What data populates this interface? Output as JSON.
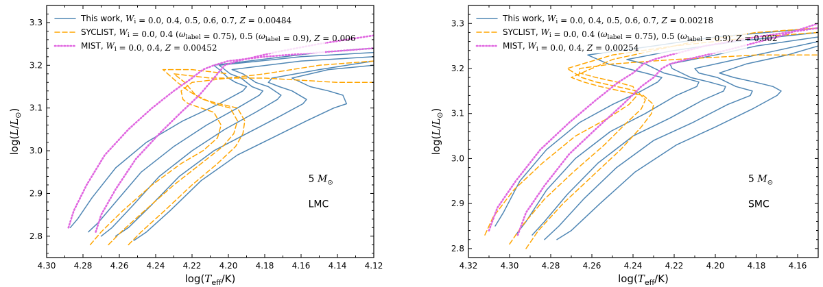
{
  "chart_data": [
    {
      "type": "line",
      "panel": "LMC",
      "xlabel": "log(T_eff/K)",
      "ylabel": "log(L/L_⊙)",
      "xlim": [
        4.3,
        4.12
      ],
      "ylim": [
        2.75,
        3.34
      ],
      "xticks": [
        4.3,
        4.28,
        4.26,
        4.24,
        4.22,
        4.2,
        4.18,
        4.16,
        4.14,
        4.12
      ],
      "xtick_labels": [
        "4.30",
        "4.28",
        "4.26",
        "4.24",
        "4.22",
        "4.20",
        "4.18",
        "4.16",
        "4.14",
        "4.12"
      ],
      "yticks": [
        2.8,
        2.9,
        3.0,
        3.1,
        3.2,
        3.3
      ],
      "ytick_labels": [
        "2.8",
        "2.9",
        "3.0",
        "3.1",
        "3.2",
        "3.3"
      ],
      "annotations": [
        "5 M_⊙",
        "LMC"
      ],
      "annotation_mass_number": "5",
      "annotation_mass_unit": "M",
      "annotation_mass_sub": "⊙",
      "annotation_galaxy": "LMC",
      "legend": [
        {
          "name": "This work",
          "prefix": "This work, ",
          "math": "W_i = 0.0, 0.4, 0.5, 0.6, 0.7, Z = 0.00484",
          "style": "solid",
          "color": "#4f86b4"
        },
        {
          "name": "SYCLIST",
          "prefix": "SYCLIST, ",
          "math": "W_i = 0.0, 0.4 (ω_label = 0.75), 0.5 (ω_label = 0.9), Z = 0.006",
          "style": "dashed",
          "color": "#ffa500"
        },
        {
          "name": "MIST",
          "prefix": "MIST, ",
          "math": "W_i = 0.0, 0.4, Z = 0.00452",
          "style": "dotted",
          "color": "#e066e0"
        }
      ],
      "series": [
        {
          "name": "This work W=0.0",
          "style": "solid",
          "x": [
            4.287,
            4.283,
            4.275,
            4.262,
            4.245,
            4.225,
            4.205,
            4.192,
            4.19,
            4.196,
            4.2,
            4.205,
            4.208,
            4.15,
            4.12
          ],
          "y": [
            2.82,
            2.84,
            2.89,
            2.96,
            3.02,
            3.07,
            3.11,
            3.14,
            3.15,
            3.16,
            3.17,
            3.19,
            3.2,
            3.23,
            3.24
          ]
        },
        {
          "name": "This work W=0.4",
          "style": "solid",
          "x": [
            4.277,
            4.272,
            4.262,
            4.248,
            4.23,
            4.212,
            4.195,
            4.183,
            4.181,
            4.187,
            4.193,
            4.199,
            4.205,
            4.16,
            4.12
          ],
          "y": [
            2.81,
            2.83,
            2.88,
            2.95,
            3.01,
            3.06,
            3.1,
            3.13,
            3.14,
            3.15,
            3.17,
            3.18,
            3.2,
            3.22,
            3.23
          ]
        },
        {
          "name": "This work W=0.5",
          "style": "solid",
          "x": [
            4.27,
            4.264,
            4.253,
            4.238,
            4.22,
            4.202,
            4.185,
            4.173,
            4.171,
            4.178,
            4.185,
            4.192,
            4.198,
            4.16,
            4.12
          ],
          "y": [
            2.8,
            2.82,
            2.87,
            2.94,
            3.0,
            3.05,
            3.09,
            3.12,
            3.13,
            3.15,
            3.16,
            3.18,
            3.19,
            3.21,
            3.22
          ]
        },
        {
          "name": "This work W=0.6",
          "style": "solid",
          "x": [
            4.262,
            4.255,
            4.243,
            4.227,
            4.208,
            4.19,
            4.172,
            4.159,
            4.157,
            4.165,
            4.172,
            4.178,
            4.176,
            4.15,
            4.12
          ],
          "y": [
            2.8,
            2.82,
            2.87,
            2.94,
            3.0,
            3.04,
            3.08,
            3.11,
            3.12,
            3.14,
            3.15,
            3.16,
            3.17,
            3.19,
            3.21
          ]
        },
        {
          "name": "This work W=0.7",
          "style": "solid",
          "x": [
            4.252,
            4.245,
            4.232,
            4.215,
            4.195,
            4.176,
            4.157,
            4.142,
            4.135,
            4.137,
            4.145,
            4.155,
            4.165,
            4.145,
            4.12
          ],
          "y": [
            2.79,
            2.81,
            2.86,
            2.93,
            2.99,
            3.03,
            3.07,
            3.1,
            3.11,
            3.13,
            3.14,
            3.15,
            3.17,
            3.19,
            3.2
          ]
        },
        {
          "name": "SYCLIST W=0.0",
          "style": "dashed",
          "x": [
            4.276,
            4.27,
            4.258,
            4.242,
            4.226,
            4.214,
            4.206,
            4.204,
            4.208,
            4.215,
            4.222,
            4.225,
            4.226,
            4.22,
            4.2,
            4.18,
            4.15,
            4.12
          ],
          "y": [
            2.78,
            2.81,
            2.86,
            2.92,
            2.97,
            3.0,
            3.03,
            3.06,
            3.09,
            3.1,
            3.11,
            3.12,
            3.14,
            3.16,
            3.17,
            3.18,
            3.2,
            3.21
          ]
        },
        {
          "name": "SYCLIST W=0.4",
          "style": "dashed",
          "x": [
            4.266,
            4.259,
            4.246,
            4.23,
            4.215,
            4.203,
            4.197,
            4.195,
            4.199,
            4.208,
            4.218,
            4.224,
            4.23,
            4.21,
            4.18,
            4.14,
            4.12
          ],
          "y": [
            2.78,
            2.81,
            2.86,
            2.92,
            2.97,
            3.01,
            3.04,
            3.07,
            3.1,
            3.11,
            3.13,
            3.16,
            3.18,
            3.17,
            3.17,
            3.16,
            3.16
          ]
        },
        {
          "name": "SYCLIST W=0.5",
          "style": "dashed",
          "x": [
            4.255,
            4.248,
            4.235,
            4.22,
            4.206,
            4.196,
            4.192,
            4.191,
            4.195,
            4.205,
            4.214,
            4.222,
            4.228,
            4.236,
            4.22,
            4.2
          ],
          "y": [
            2.78,
            2.81,
            2.86,
            2.92,
            2.97,
            3.01,
            3.04,
            3.07,
            3.1,
            3.11,
            3.12,
            3.14,
            3.16,
            3.19,
            3.19,
            3.18
          ]
        },
        {
          "name": "MIST W=0.0",
          "style": "dotted",
          "x": [
            4.288,
            4.285,
            4.278,
            4.268,
            4.255,
            4.242,
            4.23,
            4.22,
            4.214,
            4.208,
            4.2,
            4.18,
            4.15,
            4.12
          ],
          "y": [
            2.82,
            2.86,
            2.92,
            2.99,
            3.05,
            3.1,
            3.14,
            3.17,
            3.19,
            3.2,
            3.21,
            3.22,
            3.23,
            3.24
          ]
        },
        {
          "name": "MIST W=0.4",
          "style": "dotted",
          "x": [
            4.273,
            4.27,
            4.262,
            4.251,
            4.238,
            4.226,
            4.216,
            4.21,
            4.206,
            4.202,
            4.195,
            4.175,
            4.15,
            4.12
          ],
          "y": [
            2.81,
            2.85,
            2.91,
            2.98,
            3.04,
            3.09,
            3.13,
            3.16,
            3.18,
            3.2,
            3.21,
            3.23,
            3.25,
            3.27
          ]
        }
      ]
    },
    {
      "type": "line",
      "panel": "SMC",
      "xlabel": "log(T_eff/K)",
      "ylabel": "log(L/L_⊙)",
      "xlim": [
        4.32,
        4.15
      ],
      "ylim": [
        2.78,
        3.34
      ],
      "xticks": [
        4.32,
        4.3,
        4.28,
        4.26,
        4.24,
        4.22,
        4.2,
        4.18,
        4.16
      ],
      "xtick_labels": [
        "4.32",
        "4.30",
        "4.28",
        "4.26",
        "4.24",
        "4.22",
        "4.20",
        "4.18",
        "4.16"
      ],
      "yticks": [
        2.8,
        2.9,
        3.0,
        3.1,
        3.2,
        3.3
      ],
      "ytick_labels": [
        "2.8",
        "2.9",
        "3.0",
        "3.1",
        "3.2",
        "3.3"
      ],
      "annotations": [
        "5 M_⊙",
        "SMC"
      ],
      "annotation_mass_number": "5",
      "annotation_mass_unit": "M",
      "annotation_mass_sub": "⊙",
      "annotation_galaxy": "SMC",
      "legend": [
        {
          "name": "This work",
          "prefix": "This work, ",
          "math": "W_i = 0.0, 0.4, 0.5, 0.6, 0.7, Z = 0.00218",
          "style": "solid",
          "color": "#4f86b4"
        },
        {
          "name": "SYCLIST",
          "prefix": "SYCLIST, ",
          "math": "W_i = 0.0, 0.4 (ω_label = 0.75), 0.5 (ω_label = 0.9), Z = 0.002",
          "style": "dashed",
          "color": "#ffa500"
        },
        {
          "name": "MIST",
          "prefix": "MIST, ",
          "math": "W_i = 0.0, 0.4, Z = 0.00254",
          "style": "dotted",
          "color": "#e066e0"
        }
      ],
      "series": [
        {
          "name": "This work W=0.0",
          "style": "solid",
          "x": [
            4.307,
            4.303,
            4.295,
            4.282,
            4.266,
            4.25,
            4.236,
            4.228,
            4.226,
            4.234,
            4.243,
            4.252,
            4.262,
            4.23,
            4.2,
            4.15
          ],
          "y": [
            2.85,
            2.88,
            2.95,
            3.02,
            3.08,
            3.12,
            3.15,
            3.17,
            3.18,
            3.19,
            3.2,
            3.21,
            3.23,
            3.25,
            3.27,
            3.29
          ]
        },
        {
          "name": "This work W=0.4",
          "style": "solid",
          "x": [
            4.297,
            4.292,
            4.282,
            4.268,
            4.251,
            4.234,
            4.219,
            4.209,
            4.208,
            4.216,
            4.225,
            4.234,
            4.243,
            4.22,
            4.19,
            4.15
          ],
          "y": [
            2.83,
            2.86,
            2.93,
            3.0,
            3.06,
            3.1,
            3.14,
            3.16,
            3.17,
            3.18,
            3.19,
            3.21,
            3.22,
            3.24,
            3.26,
            3.28
          ]
        },
        {
          "name": "This work W=0.5",
          "style": "solid",
          "x": [
            4.289,
            4.283,
            4.272,
            4.257,
            4.24,
            4.222,
            4.206,
            4.196,
            4.195,
            4.203,
            4.212,
            4.221,
            4.222,
            4.2,
            4.18,
            4.15
          ],
          "y": [
            2.83,
            2.86,
            2.92,
            2.99,
            3.05,
            3.09,
            3.13,
            3.15,
            3.16,
            3.17,
            3.18,
            3.2,
            3.21,
            3.23,
            3.25,
            3.27
          ]
        },
        {
          "name": "This work W=0.6",
          "style": "solid",
          "x": [
            4.283,
            4.276,
            4.264,
            4.248,
            4.23,
            4.211,
            4.194,
            4.183,
            4.182,
            4.19,
            4.199,
            4.208,
            4.21,
            4.19,
            4.17,
            4.15
          ],
          "y": [
            2.82,
            2.85,
            2.91,
            2.98,
            3.04,
            3.08,
            3.12,
            3.14,
            3.15,
            3.16,
            3.18,
            3.19,
            3.2,
            3.22,
            3.24,
            3.26
          ]
        },
        {
          "name": "This work W=0.7",
          "style": "solid",
          "x": [
            4.277,
            4.27,
            4.256,
            4.239,
            4.219,
            4.2,
            4.182,
            4.17,
            4.168,
            4.172,
            4.181,
            4.191,
            4.198,
            4.185,
            4.165,
            4.15
          ],
          "y": [
            2.82,
            2.84,
            2.9,
            2.97,
            3.03,
            3.07,
            3.11,
            3.14,
            3.15,
            3.16,
            3.17,
            3.18,
            3.19,
            3.21,
            3.23,
            3.25
          ]
        },
        {
          "name": "SYCLIST W=0.0",
          "style": "dashed",
          "x": [
            4.312,
            4.308,
            4.298,
            4.284,
            4.268,
            4.252,
            4.242,
            4.238,
            4.24,
            4.248,
            4.258,
            4.266,
            4.266,
            4.25,
            4.22,
            4.18,
            4.15
          ],
          "y": [
            2.83,
            2.87,
            2.93,
            2.99,
            3.05,
            3.09,
            3.12,
            3.14,
            3.16,
            3.17,
            3.18,
            3.19,
            3.2,
            3.21,
            3.22,
            3.23,
            3.23
          ]
        },
        {
          "name": "SYCLIST W=0.4",
          "style": "dashed",
          "x": [
            4.3,
            4.294,
            4.283,
            4.269,
            4.254,
            4.243,
            4.236,
            4.234,
            4.238,
            4.248,
            4.258,
            4.265,
            4.272,
            4.25,
            4.22,
            4.18,
            4.15
          ],
          "y": [
            2.81,
            2.85,
            2.91,
            2.97,
            3.03,
            3.08,
            3.11,
            3.13,
            3.15,
            3.16,
            3.17,
            3.18,
            3.2,
            3.23,
            3.25,
            3.27,
            3.28
          ]
        },
        {
          "name": "SYCLIST W=0.5",
          "style": "dashed",
          "x": [
            4.292,
            4.286,
            4.274,
            4.26,
            4.246,
            4.236,
            4.231,
            4.23,
            4.235,
            4.246,
            4.256,
            4.264,
            4.27,
            4.25,
            4.21,
            4.18,
            4.15
          ],
          "y": [
            2.8,
            2.84,
            2.9,
            2.96,
            3.02,
            3.07,
            3.1,
            3.12,
            3.14,
            3.15,
            3.16,
            3.17,
            3.18,
            3.22,
            3.26,
            3.28,
            3.29
          ]
        },
        {
          "name": "MIST W=0.0",
          "style": "dotted",
          "x": [
            4.31,
            4.306,
            4.297,
            4.285,
            4.271,
            4.258,
            4.247,
            4.24,
            4.235,
            4.23,
            4.222,
            4.205,
            4.18,
            4.15
          ],
          "y": [
            2.84,
            2.89,
            2.95,
            3.02,
            3.08,
            3.13,
            3.17,
            3.19,
            3.21,
            3.22,
            3.23,
            3.25,
            3.27,
            3.29
          ]
        },
        {
          "name": "MIST W=0.4",
          "style": "dotted",
          "x": [
            4.296,
            4.292,
            4.283,
            4.271,
            4.257,
            4.245,
            4.236,
            4.23,
            4.226,
            4.222,
            4.214,
            4.195,
            4.17,
            4.15
          ],
          "y": [
            2.83,
            2.88,
            2.94,
            3.01,
            3.07,
            3.12,
            3.16,
            3.18,
            3.2,
            3.21,
            3.22,
            3.24,
            3.27,
            3.3
          ]
        }
      ]
    }
  ],
  "colors": {
    "this_work": "#4f86b4",
    "syclist": "#ffa500",
    "mist": "#e066e0"
  }
}
